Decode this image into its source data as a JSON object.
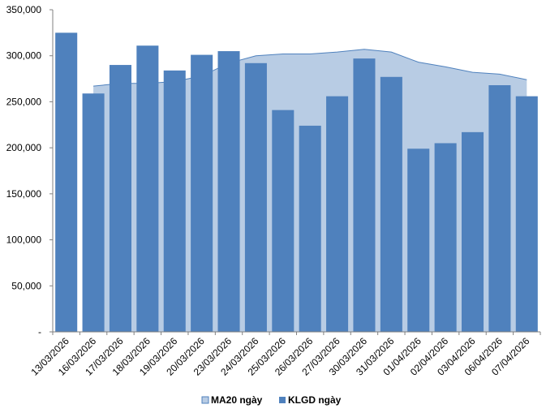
{
  "chart_data": {
    "type": "bar",
    "categories": [
      "13/03/2026",
      "16/03/2026",
      "17/03/2026",
      "18/03/2026",
      "19/03/2026",
      "20/03/2026",
      "23/03/2026",
      "24/03/2026",
      "25/03/2026",
      "26/03/2026",
      "27/03/2026",
      "30/03/2026",
      "31/03/2026",
      "01/04/2026",
      "02/04/2026",
      "03/04/2026",
      "06/04/2026",
      "07/04/2026"
    ],
    "series": [
      {
        "name": "MA20 ngày",
        "kind": "area",
        "color": "#b8cce4",
        "stroke": "#4f81bd",
        "values": [
          null,
          267000,
          270000,
          270000,
          272000,
          278000,
          292000,
          300000,
          302000,
          302000,
          304000,
          307000,
          304000,
          293000,
          288000,
          282000,
          280000,
          274000
        ]
      },
      {
        "name": "KLGD ngày",
        "kind": "bar",
        "color": "#4f81bd",
        "values": [
          325000,
          259000,
          290000,
          311000,
          284000,
          301000,
          305000,
          292000,
          241000,
          224000,
          256000,
          297000,
          277000,
          199000,
          205000,
          217000,
          268000,
          256000
        ]
      }
    ],
    "ylim": [
      0,
      350000
    ],
    "yticks": [
      {
        "value": 0,
        "label": "-"
      },
      {
        "value": 50000,
        "label": "50,000"
      },
      {
        "value": 100000,
        "label": "100,000"
      },
      {
        "value": 150000,
        "label": "150,000"
      },
      {
        "value": 200000,
        "label": "200,000"
      },
      {
        "value": 250000,
        "label": "250,000"
      },
      {
        "value": 300000,
        "label": "300,000"
      },
      {
        "value": 350000,
        "label": "350,000"
      }
    ],
    "grid": false,
    "legend_position": "bottom"
  }
}
